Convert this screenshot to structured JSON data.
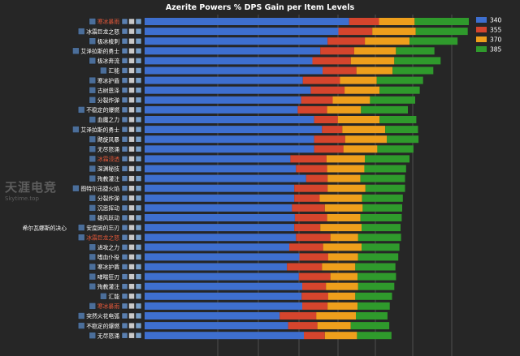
{
  "chart_data": {
    "type": "bar",
    "stacked": true,
    "orientation": "horizontal",
    "title": "Azerite Powers % DPS Gain per Item Levels",
    "legend_position": "top-right",
    "grid": true,
    "series": [
      {
        "name": "340",
        "color": "#3e6fcf"
      },
      {
        "name": "355",
        "color": "#d5452d"
      },
      {
        "name": "370",
        "color": "#ee9f1c"
      },
      {
        "name": "385",
        "color": "#2f9a2c"
      }
    ],
    "rows": [
      {
        "label": "寒冰暴雨",
        "label_color": "#e8593a",
        "values": [
          362,
          53,
          63,
          96
        ]
      },
      {
        "label": "冰霜巨龙之怒",
        "label_color": "#ffffff",
        "values": [
          343,
          60,
          77,
          92
        ]
      },
      {
        "label": "极冰棱刺",
        "label_color": "#ffffff",
        "values": [
          324,
          66,
          79,
          85
        ]
      },
      {
        "label": "艾泽拉斯的勇士",
        "label_color": "#ffffff",
        "values": [
          311,
          60,
          74,
          68
        ]
      },
      {
        "label": "极冰奔流",
        "label_color": "#ffffff",
        "values": [
          297,
          68,
          77,
          82
        ]
      },
      {
        "label": "汇能",
        "label_color": "#ffffff",
        "values": [
          315,
          60,
          64,
          72
        ]
      },
      {
        "label": "寒冰护盾",
        "label_color": "#ffffff",
        "values": [
          280,
          66,
          65,
          82
        ]
      },
      {
        "label": "古树恩泽",
        "label_color": "#ffffff",
        "values": [
          294,
          60,
          62,
          71
        ]
      },
      {
        "label": "分裂炸弹",
        "label_color": "#ffffff",
        "values": [
          277,
          56,
          66,
          80
        ]
      },
      {
        "label": "不稳定的爆燃",
        "label_color": "#ffffff",
        "values": [
          271,
          52,
          60,
          83
        ]
      },
      {
        "label": "血魔之力",
        "label_color": "#ffffff",
        "values": [
          300,
          42,
          74,
          65
        ]
      },
      {
        "label": "艾泽拉斯的勇士",
        "label_color": "#ffffff",
        "values": [
          314,
          36,
          76,
          58
        ]
      },
      {
        "label": "飓旋风暴",
        "label_color": "#ffffff",
        "values": [
          300,
          55,
          74,
          56
        ]
      },
      {
        "label": "无尽怒涌",
        "label_color": "#ffffff",
        "values": [
          300,
          52,
          60,
          64
        ]
      },
      {
        "label": "冰霜浸透",
        "label_color": "#e8593a",
        "values": [
          258,
          64,
          68,
          79
        ]
      },
      {
        "label": "深渊秘技",
        "label_color": "#ffffff",
        "values": [
          268,
          55,
          66,
          74
        ]
      },
      {
        "label": "殉教灌注",
        "label_color": "#ffffff",
        "values": [
          286,
          38,
          58,
          79
        ]
      },
      {
        "label": "图特尔迅捷火焰",
        "label_color": "#ffffff",
        "values": [
          265,
          59,
          67,
          70
        ]
      },
      {
        "label": "分裂炸弹",
        "label_color": "#ffffff",
        "values": [
          265,
          45,
          75,
          72
        ]
      },
      {
        "label": "沉思挥动",
        "label_color": "#ffffff",
        "values": [
          261,
          58,
          67,
          70
        ]
      },
      {
        "label": "雄风跃动",
        "label_color": "#ffffff",
        "values": [
          266,
          57,
          59,
          73
        ]
      },
      {
        "label": "安度因的忘刃",
        "label_color": "#ffffff",
        "values": [
          265,
          46,
          73,
          69
        ]
      },
      {
        "label": "冰霜巨龙之怒",
        "label_color": "#e8593a",
        "values": [
          268,
          61,
          49,
          76
        ]
      },
      {
        "label": "进攻之力",
        "label_color": "#ffffff",
        "values": [
          256,
          60,
          68,
          67
        ]
      },
      {
        "label": "嗜血仆役",
        "label_color": "#ffffff",
        "values": [
          274,
          51,
          53,
          71
        ]
      },
      {
        "label": "寒冰护盾",
        "label_color": "#ffffff",
        "values": [
          252,
          62,
          59,
          71
        ]
      },
      {
        "label": "哮喘狂刃",
        "label_color": "#ffffff",
        "values": [
          273,
          56,
          48,
          68
        ]
      },
      {
        "label": "殉教灌注",
        "label_color": "#ffffff",
        "values": [
          279,
          42,
          57,
          64
        ]
      },
      {
        "label": "汇能",
        "label_color": "#ffffff",
        "values": [
          278,
          47,
          48,
          65
        ]
      },
      {
        "label": "寒冰暴雨",
        "label_color": "#e8593a",
        "values": [
          279,
          45,
          53,
          57
        ]
      },
      {
        "label": "突然火花电弧",
        "label_color": "#ffffff",
        "values": [
          239,
          65,
          70,
          56
        ]
      },
      {
        "label": "不稳定的爆燃",
        "label_color": "#ffffff",
        "values": [
          254,
          52,
          59,
          68
        ]
      },
      {
        "label": "无尽怒涌",
        "label_color": "#ffffff",
        "values": [
          282,
          37,
          57,
          61
        ]
      }
    ],
    "left_group_labels": [
      {
        "text": "希尔瓦娜斯的决心",
        "row": 21
      }
    ]
  },
  "watermark": {
    "brand": "天涯电竞",
    "site": "Skytime.top"
  }
}
